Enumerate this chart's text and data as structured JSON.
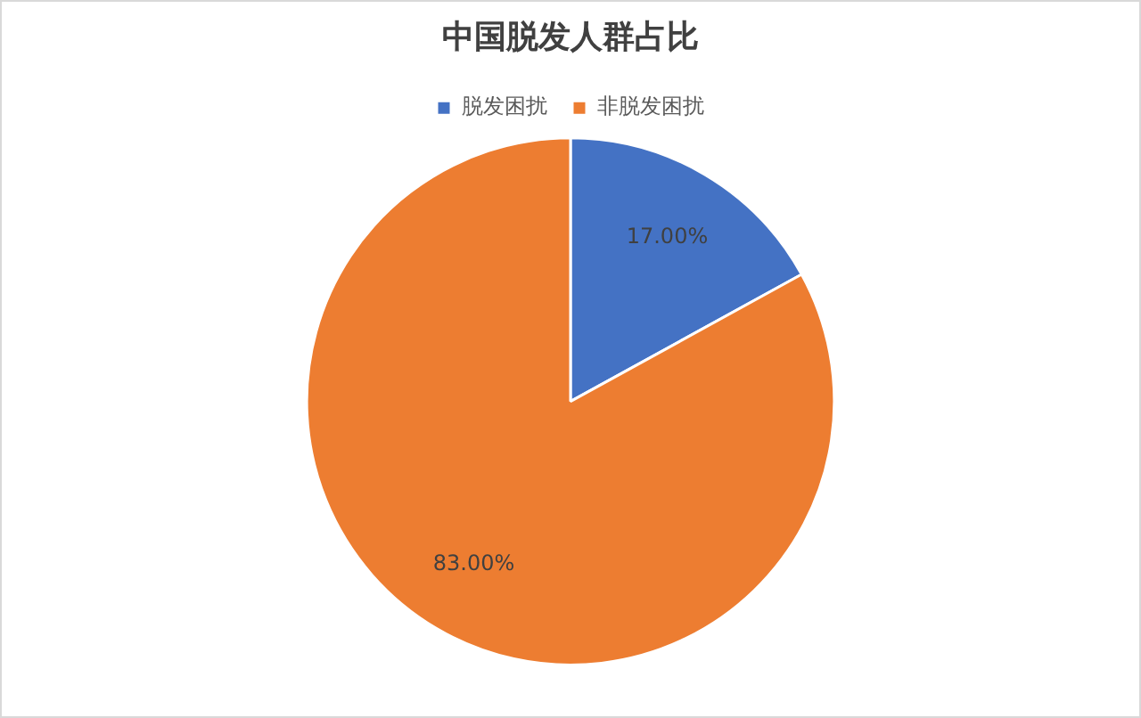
{
  "chart_data": {
    "type": "pie",
    "title": "中国脱发人群占比",
    "categories": [
      "脱发困扰",
      "非脱发困扰"
    ],
    "values": [
      17,
      83
    ],
    "colors": [
      "#4472c4",
      "#ed7d31"
    ],
    "value_labels": [
      "17.00%",
      "83.00%"
    ],
    "legend": "top"
  }
}
